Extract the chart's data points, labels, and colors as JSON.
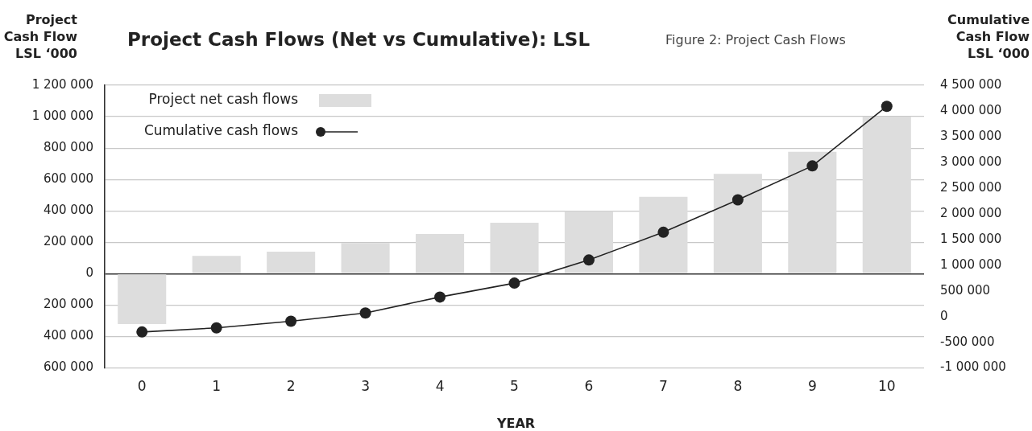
{
  "chart_data": {
    "type": "bar",
    "title": "Project Cash Flows (Net vs Cumulative): LSL",
    "subtitle": "Figure 2: Project Cash Flows",
    "xlabel": "YEAR",
    "ylabel": "Project Cash Flow LSL ‘000",
    "y2label": "Cumulative Cash Flow LSL ‘000",
    "categories": [
      "0",
      "1",
      "2",
      "3",
      "4",
      "5",
      "6",
      "7",
      "8",
      "9",
      "10"
    ],
    "series": [
      {
        "name": "Project net cash flows",
        "color": "#dddddd",
        "values": [
          -320000,
          113000,
          140000,
          195000,
          253000,
          325000,
          398000,
          490000,
          635000,
          777000,
          1000000
        ]
      },
      {
        "name": "Cumulative cash flows",
        "type": "line",
        "axis": "y2",
        "color": "#222222",
        "marker": "circle",
        "values": [
          -300000,
          -220000,
          -90000,
          70000,
          380000,
          650000,
          1100000,
          1640000,
          2270000,
          2930000,
          4090000
        ]
      }
    ],
    "ylim": [
      -600000,
      1200000
    ],
    "yticks": [
      {
        "value": -600000,
        "label": "600 000"
      },
      {
        "value": -400000,
        "label": "400 000"
      },
      {
        "value": -200000,
        "label": "200 000"
      },
      0,
      {
        "value": 200000,
        "label": "200 000"
      },
      {
        "value": 400000,
        "label": "400 000"
      },
      {
        "value": 600000,
        "label": "600 000"
      },
      {
        "value": 800000,
        "label": "800 000"
      },
      {
        "value": 1000000,
        "label": "1 000 000"
      },
      {
        "value": 1200000,
        "label": "1 200 000"
      }
    ],
    "y2lim": [
      -1000000,
      4500000
    ],
    "y2ticks": [
      {
        "value": -1000000,
        "label": "-1 000 000"
      },
      {
        "value": -500000,
        "label": "-500 000"
      },
      0,
      {
        "value": 500000,
        "label": "500 000"
      },
      {
        "value": 1000000,
        "label": "1 000 000"
      },
      {
        "value": 1500000,
        "label": "1 500 000"
      },
      {
        "value": 2000000,
        "label": "2 000 000"
      },
      {
        "value": 2500000,
        "label": "2 500 000"
      },
      {
        "value": 3000000,
        "label": "3 000 000"
      },
      {
        "value": 3500000,
        "label": "3 500 000"
      },
      {
        "value": 4000000,
        "label": "4 000 000"
      },
      {
        "value": 4500000,
        "label": "4 500 000"
      }
    ],
    "grid": "y",
    "legend": "top left"
  }
}
